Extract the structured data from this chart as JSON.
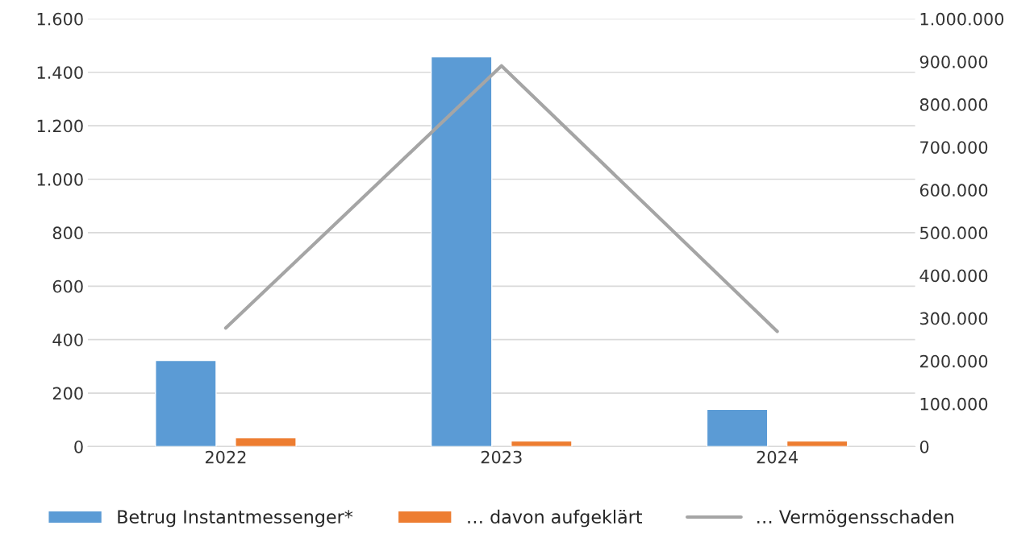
{
  "chart_data": {
    "type": "bar",
    "categories": [
      "2022",
      "2023",
      "2024"
    ],
    "series": [
      {
        "name": "Betrug Instantmessenger*",
        "color": "#5b9bd5",
        "values": [
          322,
          1458,
          139
        ]
      },
      {
        "name": "… davon aufgeklärt",
        "color": "#ed7d31",
        "values": [
          33,
          21,
          21
        ]
      },
      {
        "name": "… Vermögensschaden",
        "color": "#a5a5a5",
        "type": "line",
        "axis": "y2",
        "values": [
          277000,
          890000,
          269000
        ]
      }
    ],
    "ylim": [
      0,
      1600
    ],
    "yticks": [
      0,
      200,
      400,
      600,
      800,
      {
        "value": 1000,
        "label": "1.000"
      },
      {
        "value": 1200,
        "label": "1.200"
      },
      {
        "value": 1400,
        "label": "1.400"
      },
      {
        "value": 1600,
        "label": "1.600"
      }
    ],
    "y2lim": [
      0,
      1000000
    ],
    "y2ticks": [
      0,
      {
        "value": 100000,
        "label": "100.000"
      },
      {
        "value": 200000,
        "label": "200.000"
      },
      {
        "value": 300000,
        "label": "300.000"
      },
      {
        "value": 400000,
        "label": "400.000"
      },
      {
        "value": 500000,
        "label": "500.000"
      },
      {
        "value": 600000,
        "label": "600.000"
      },
      {
        "value": 700000,
        "label": "700.000"
      },
      {
        "value": 800000,
        "label": "800.000"
      },
      {
        "value": 900000,
        "label": "900.000"
      },
      {
        "value": 1000000,
        "label": "1.000.000"
      }
    ],
    "grid": "y",
    "legend": "bottom"
  }
}
